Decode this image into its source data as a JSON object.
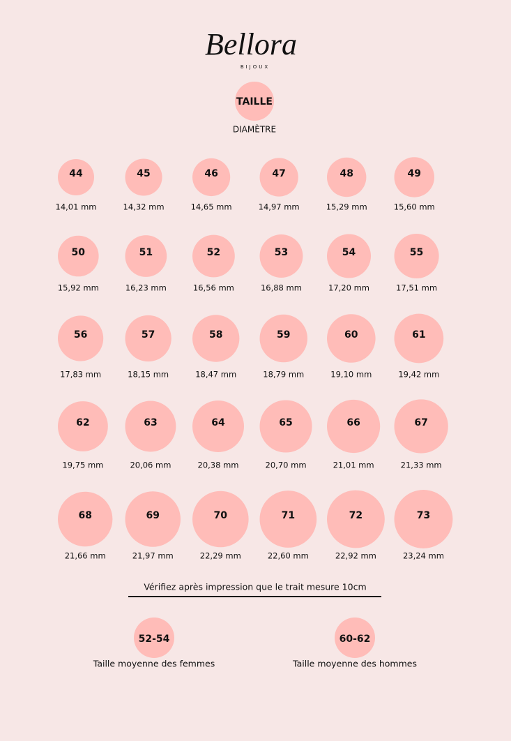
{
  "brand": {
    "name": "Bellora",
    "sub": "BIJOUX"
  },
  "legend": {
    "size": "TAILLE",
    "diameter": "DIAMÈTRE"
  },
  "sizes": [
    {
      "size": "44",
      "diameter": "14,01 mm"
    },
    {
      "size": "45",
      "diameter": "14,32 mm"
    },
    {
      "size": "46",
      "diameter": "14,65 mm"
    },
    {
      "size": "47",
      "diameter": "14,97 mm"
    },
    {
      "size": "48",
      "diameter": "15,29 mm"
    },
    {
      "size": "49",
      "diameter": "15,60 mm"
    },
    {
      "size": "50",
      "diameter": "15,92 mm"
    },
    {
      "size": "51",
      "diameter": "16,23 mm"
    },
    {
      "size": "52",
      "diameter": "16,56 mm"
    },
    {
      "size": "53",
      "diameter": "16,88 mm"
    },
    {
      "size": "54",
      "diameter": "17,20 mm"
    },
    {
      "size": "55",
      "diameter": "17,51 mm"
    },
    {
      "size": "56",
      "diameter": "17,83 mm"
    },
    {
      "size": "57",
      "diameter": "18,15 mm"
    },
    {
      "size": "58",
      "diameter": "18,47 mm"
    },
    {
      "size": "59",
      "diameter": "18,79 mm"
    },
    {
      "size": "60",
      "diameter": "19,10 mm"
    },
    {
      "size": "61",
      "diameter": "19,42 mm"
    },
    {
      "size": "62",
      "diameter": "19,75 mm"
    },
    {
      "size": "63",
      "diameter": "20,06 mm"
    },
    {
      "size": "64",
      "diameter": "20,38 mm"
    },
    {
      "size": "65",
      "diameter": "20,70 mm"
    },
    {
      "size": "66",
      "diameter": "21,01 mm"
    },
    {
      "size": "67",
      "diameter": "21,33 mm"
    },
    {
      "size": "68",
      "diameter": "21,66 mm"
    },
    {
      "size": "69",
      "diameter": "21,97 mm"
    },
    {
      "size": "70",
      "diameter": "22,29 mm"
    },
    {
      "size": "71",
      "diameter": "22,60 mm"
    },
    {
      "size": "72",
      "diameter": "22,92 mm"
    },
    {
      "size": "73",
      "diameter": "23,24 mm"
    }
  ],
  "note": "Vérifiez après impression que le trait mesure 10cm",
  "averages": [
    {
      "range": "52-54",
      "label": "Taille moyenne des femmes"
    },
    {
      "range": "60-62",
      "label": "Taille moyenne des hommes"
    }
  ]
}
